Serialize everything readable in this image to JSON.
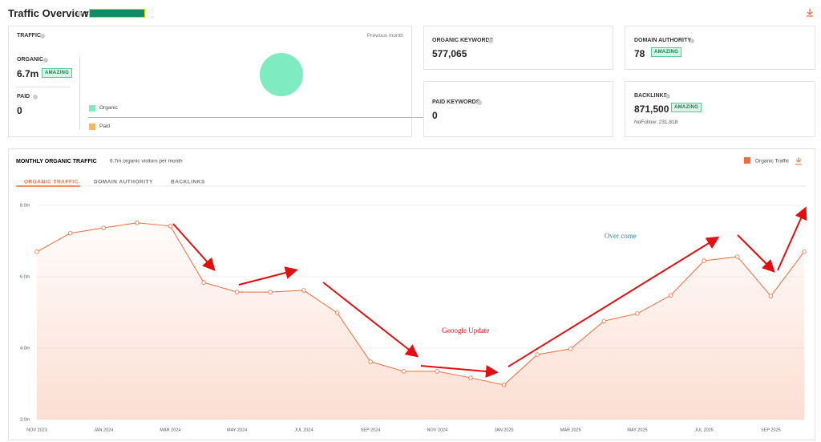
{
  "header": {
    "title": "Traffic Overview",
    "separator": ":"
  },
  "traffic": {
    "title": "TRAFFIC",
    "period": "Previous month",
    "organic": {
      "label": "ORGANIC",
      "value": "6.7m",
      "badge": "AMAZING"
    },
    "paid": {
      "label": "PAID",
      "value": "0"
    },
    "legend": [
      "Organic",
      "Paid"
    ]
  },
  "organic_keywords": {
    "label": "ORGANIC KEYWORDS",
    "value": "577,065"
  },
  "paid_keywords": {
    "label": "PAID KEYWORDS",
    "value": "0"
  },
  "domain_authority": {
    "label": "DOMAIN AUTHORITY",
    "value": "78",
    "badge": "AMAZING"
  },
  "backlinks": {
    "label": "BACKLINKS",
    "value": "871,500",
    "badge": "AMAZING",
    "note": "NoFollow: 231,818"
  },
  "tabs": [
    "ORGANIC TRAFFIC",
    "DOMAIN AUTHORITY",
    "BACKLINKS"
  ],
  "chart_data": {
    "type": "line",
    "title": "MONTHLY ORGANIC TRAFFIC",
    "subtitle": "6.7m organic visitors per month",
    "categories": [
      "NOV 2023",
      null,
      "JAN 2024",
      null,
      "MAR 2024",
      null,
      "MAY 2024",
      null,
      "JUL 2024",
      null,
      "SEP 2024",
      null,
      "NOV 2024",
      null,
      "JAN 2025",
      null,
      "MAR 2025",
      null,
      "MAY 2025",
      null,
      "JUL 2025",
      null,
      "SEP 2025",
      null
    ],
    "series": [
      {
        "name": "Organic Traffic",
        "color": "#f26b3a",
        "values": [
          6.7,
          7.22,
          7.37,
          7.51,
          7.42,
          5.84,
          5.57,
          5.57,
          5.62,
          4.99,
          3.62,
          3.35,
          3.35,
          3.17,
          2.97,
          3.82,
          3.98,
          4.76,
          4.97,
          5.48,
          6.45,
          6.56,
          5.46,
          6.7
        ]
      }
    ],
    "ylim": [
      2,
      8
    ],
    "yticks": [
      {
        "value": 2,
        "label": "2.0m"
      },
      {
        "value": 4,
        "label": "4.0m"
      },
      {
        "value": 6,
        "label": "6.0m"
      },
      {
        "value": 8,
        "label": "8.0m"
      }
    ],
    "grid": true,
    "legend": "top-right",
    "annotations": [
      "Over come",
      "Gooogle Update"
    ]
  }
}
